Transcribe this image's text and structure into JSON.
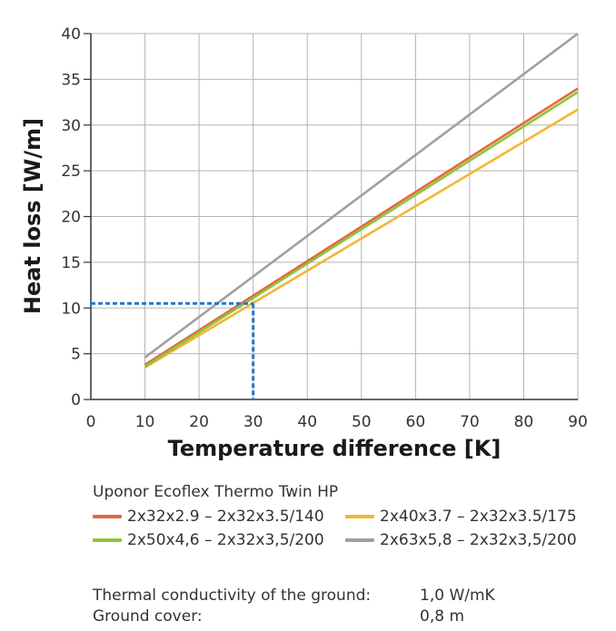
{
  "chart_data": {
    "type": "line",
    "xlabel": "Temperature difference [K]",
    "ylabel": "Heat loss [W/m]",
    "xlim": [
      0,
      90
    ],
    "ylim": [
      0,
      40
    ],
    "xticks": [
      "0",
      "10",
      "20",
      "30",
      "40",
      "50",
      "60",
      "70",
      "80",
      "90"
    ],
    "yticks": [
      "0",
      "5",
      "10",
      "15",
      "20",
      "25",
      "30",
      "35",
      "40"
    ],
    "grid": true,
    "series": [
      {
        "name": "2x32x2.9 – 2x32x3.5/140",
        "color": "#e8693c",
        "x": [
          10,
          90
        ],
        "y": [
          3.8,
          34.0
        ]
      },
      {
        "name": "2x40x3.7 – 2x32x3.5/175",
        "color": "#f2b632",
        "x": [
          10,
          90
        ],
        "y": [
          3.5,
          31.7
        ]
      },
      {
        "name": "2x50x4,6 – 2x32x3,5/200",
        "color": "#8cc63f",
        "x": [
          10,
          90
        ],
        "y": [
          3.6,
          33.6
        ]
      },
      {
        "name": "2x63x5,8 – 2x32x3,5/200",
        "color": "#a0a0a0",
        "x": [
          10,
          90
        ],
        "y": [
          4.6,
          40.0
        ]
      }
    ],
    "annotations": [
      {
        "type": "reference-lines",
        "x": 30,
        "y": 10.5,
        "color": "#1f78c8"
      }
    ]
  },
  "legend": {
    "title": "Uponor Ecoflex Thermo Twin HP"
  },
  "info": {
    "rows": [
      {
        "label": "Thermal conductivity of the ground:",
        "value": "1,0 W/mK"
      },
      {
        "label": "Ground cover:",
        "value": "0,8 m"
      }
    ]
  }
}
